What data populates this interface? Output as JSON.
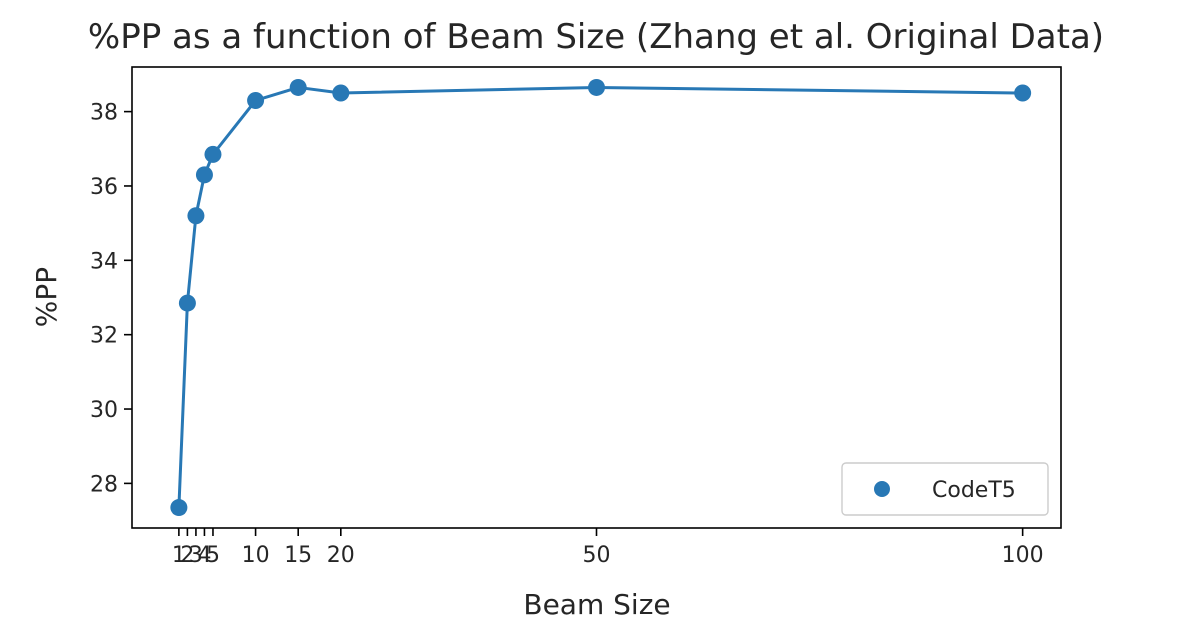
{
  "chart_data": {
    "type": "line",
    "title": "%PP as a function of Beam Size (Zhang et al. Original Data)",
    "xlabel": "Beam Size",
    "ylabel": "%PP",
    "xlim": [
      -4.5,
      104.5
    ],
    "ylim": [
      26.8,
      39.2
    ],
    "xticks": [
      1,
      2,
      3,
      4,
      5,
      10,
      15,
      20,
      50,
      100
    ],
    "yticks": [
      28,
      30,
      32,
      34,
      36,
      38
    ],
    "grid": false,
    "legend_position": "lower-right",
    "series": [
      {
        "name": "CodeT5",
        "color": "#2878b5",
        "marker": "circle",
        "x": [
          1,
          2,
          3,
          4,
          5,
          10,
          15,
          20,
          50,
          100
        ],
        "y": [
          27.35,
          32.85,
          35.2,
          36.3,
          36.85,
          38.3,
          38.65,
          38.5,
          38.65,
          38.5
        ]
      }
    ]
  }
}
